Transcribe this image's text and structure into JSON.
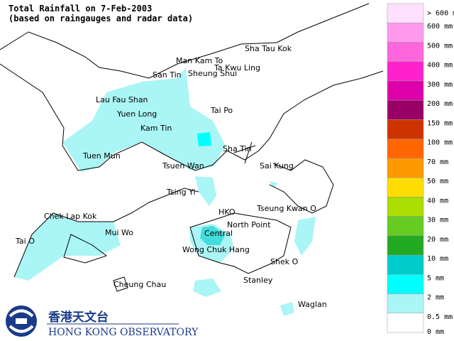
{
  "header": {
    "title": "Total Rainfall on 7-Feb-2003",
    "subtitle": "(based on raingauges and radar data)"
  },
  "places": [
    "Sha Tau Kok",
    "Man Kam To",
    "Ta Kwu Ling",
    "San Tin",
    "Sheung Shui",
    "Lau Fau Shan",
    "Yuen Long",
    "Tai Po",
    "Kam Tin",
    "Sha Tin",
    "Tuen Mun",
    "Tsuen Wan",
    "Sai Kung",
    "Tsing Yi",
    "HKO",
    "Tseung Kwan O",
    "Chek Lap Kok",
    "Mui Wo",
    "North Point",
    "Central",
    "Tai O",
    "Wong Chuk Hang",
    "Shek O",
    "Stanley",
    "Cheung Chau",
    "Waglan"
  ],
  "legend": {
    "labels": [
      "> 600 mm",
      "600 mm",
      "500 mm",
      "400 mm",
      "300 mm",
      "200 mm",
      "150 mm",
      "100 mm",
      "70 mm",
      "50 mm",
      "40 mm",
      "30 mm",
      "20 mm",
      "10 mm",
      "5 mm",
      "2 mm",
      "0.5 mm",
      "0 mm"
    ],
    "colors": [
      "#ffe0ff",
      "#ff99ee",
      "#ff66dd",
      "#ff22cc",
      "#dd00aa",
      "#990066",
      "#cc3300",
      "#ff6600",
      "#ff9900",
      "#ffdd00",
      "#aadd00",
      "#66cc22",
      "#22aa22",
      "#00cccc",
      "#00ffff",
      "#aaf5f5",
      "#ffffff"
    ]
  },
  "logo": {
    "chinese": "香港天文台",
    "english": "HONG KONG OBSERVATORY"
  }
}
